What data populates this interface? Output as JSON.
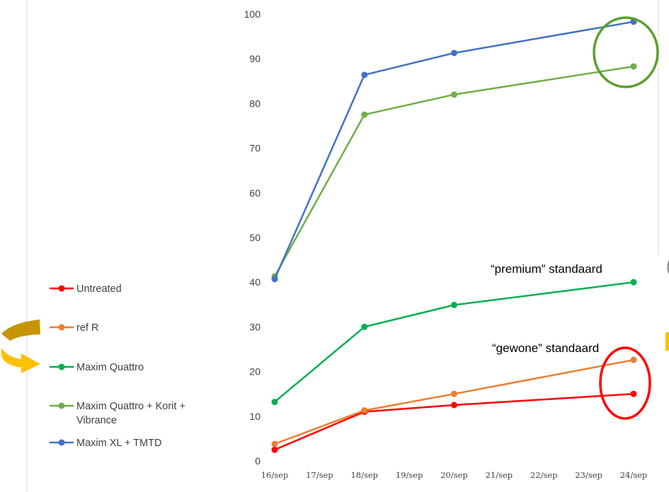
{
  "chart_data": {
    "type": "line",
    "x": [
      "16/sep",
      "18/sep",
      "20/sep",
      "24/sep"
    ],
    "x_ticks": [
      "16/sep",
      "17/sep",
      "18/sep",
      "19/sep",
      "20/sep",
      "21/sep",
      "22/sep",
      "23/sep",
      "24/sep"
    ],
    "ylim": [
      0,
      100
    ],
    "y_ticks": [
      "0",
      "10",
      "20",
      "30",
      "40",
      "50",
      "60",
      "70",
      "80",
      "90",
      "100"
    ],
    "grid": false,
    "legend_placement": "left",
    "series": [
      {
        "name": "Untreated",
        "color": "#ff0000",
        "values": [
          2.5,
          11,
          12.5,
          15
        ]
      },
      {
        "name": "ref R",
        "color": "#ed7d31",
        "values": [
          3.8,
          11.3,
          15,
          22.6
        ]
      },
      {
        "name": "Maxim Quattro",
        "color": "#00b050",
        "values": [
          13.2,
          30,
          34.9,
          40
        ]
      },
      {
        "name": "Maxim Quattro + Korit + Vibrance",
        "color": "#70ad47",
        "values": [
          41.3,
          77.5,
          82,
          88.3
        ]
      },
      {
        "name": "Maxim XL + TMTD",
        "color": "#4472c4",
        "values": [
          40.7,
          86.4,
          91.3,
          98.3
        ]
      }
    ]
  },
  "annotations": {
    "premium": "“premium” standaard",
    "gewone": "“gewone” standaard"
  },
  "colors": {
    "green_circle": "#5aa02c",
    "red_circle": "#ff0000",
    "arrow": "#ffc000",
    "arrow_dark": "#c69400",
    "side_lines": "#d9d9d9"
  }
}
